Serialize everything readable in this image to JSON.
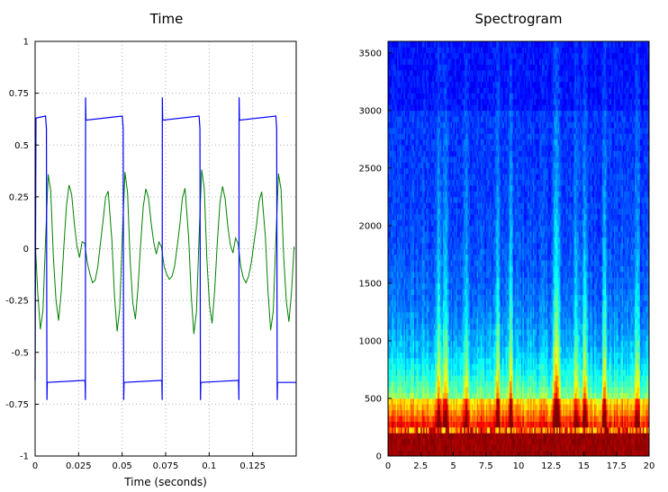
{
  "chart_data": [
    {
      "type": "line",
      "title": "Time",
      "xlabel": "Time (seconds)",
      "ylabel": "",
      "xlim": [
        0,
        0.15
      ],
      "ylim": [
        -1,
        1
      ],
      "grid": true,
      "xticks": [
        0,
        0.025,
        0.05,
        0.075,
        0.1,
        0.125
      ],
      "xtick_labels": [
        "0",
        "0.025",
        "0.05",
        "0.075",
        "0.1",
        "0.125"
      ],
      "yticks": [
        -1,
        -0.75,
        -0.5,
        -0.25,
        0,
        0.25,
        0.5,
        0.75,
        1
      ],
      "ytick_labels": [
        "-1",
        "-0.75",
        "-0.5",
        "-0.25",
        "0",
        "0.25",
        "0.5",
        "0.75",
        "1"
      ],
      "series": [
        {
          "color": "#0000ff",
          "style": "square-wave",
          "period": 0.0441,
          "high": 0.63,
          "low": -0.645,
          "high_start": 0.0,
          "high_duration": 0.0068,
          "rising_edges": [
            0.0289,
            0.073,
            0.1171
          ],
          "falling_edges": [
            0.0068,
            0.0509,
            0.095,
            0.1391
          ],
          "spike_max": 0.73,
          "spike_min": -0.73
        },
        {
          "color": "#008000",
          "style": "periodic",
          "period": 0.0441,
          "x": [
            0,
            0.0015,
            0.003,
            0.0045,
            0.006,
            0.0075,
            0.009,
            0.0105,
            0.012,
            0.0135,
            0.015,
            0.0165,
            0.018,
            0.0195,
            0.021,
            0.0225,
            0.024,
            0.0255,
            0.027,
            0.0285,
            0.03,
            0.0315,
            0.033,
            0.0345,
            0.036,
            0.0375,
            0.039,
            0.0405,
            0.042,
            0.0441
          ],
          "values": [
            0.05,
            -0.22,
            -0.4,
            -0.3,
            0.05,
            0.37,
            0.28,
            -0.05,
            -0.26,
            -0.35,
            -0.2,
            0.02,
            0.21,
            0.3,
            0.25,
            0.12,
            0.02,
            -0.03,
            0.04,
            0.02,
            -0.08,
            -0.13,
            -0.16,
            -0.14,
            -0.08,
            0.02,
            0.12,
            0.24,
            0.28,
            0.05
          ]
        }
      ]
    },
    {
      "type": "heatmap",
      "title": "Spectrogram",
      "xlabel": "",
      "ylabel": "",
      "xlim": [
        0,
        20
      ],
      "ylim": [
        0,
        3600
      ],
      "grid": false,
      "xticks": [
        0,
        2.5,
        5,
        7.5,
        10,
        12.5,
        15,
        17.5,
        20
      ],
      "xtick_labels": [
        "0",
        "2.5",
        "5",
        "7.5",
        "10",
        "12.5",
        "15",
        "17.5",
        "20"
      ],
      "yticks": [
        0,
        500,
        1000,
        1500,
        2000,
        2500,
        3000,
        3500
      ],
      "ytick_labels": [
        "0",
        "500",
        "1000",
        "1500",
        "2000",
        "2500",
        "3000",
        "3500"
      ],
      "colormap": "jet",
      "time_bins": 200,
      "freq_bins": 72,
      "bright_columns": [
        3.9,
        4.4,
        6.0,
        8.4,
        9.4,
        12.8,
        13.0,
        14.4,
        15.1,
        16.6,
        19.1
      ],
      "harmonic_rows": [
        230,
        290,
        330,
        380,
        430,
        480
      ]
    }
  ]
}
